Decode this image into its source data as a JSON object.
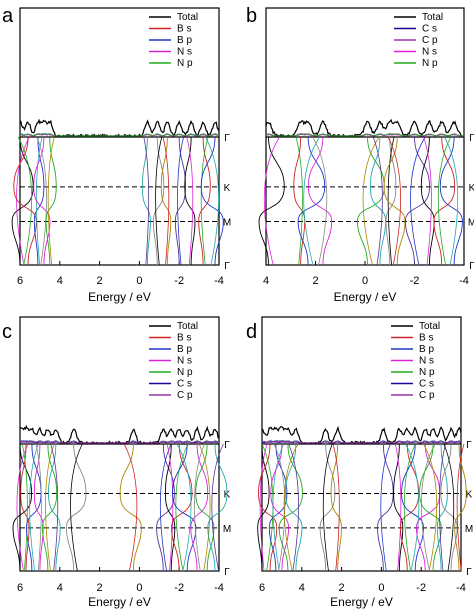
{
  "figure": {
    "colors": {
      "Total": "#000000",
      "B s": "#cc2222",
      "B p": "#2233cc",
      "N s": "#dd22dd",
      "N p": "#22aa22",
      "C s": "#220099",
      "C p": "#9933aa"
    },
    "band_palette": [
      "#000000",
      "#cc2222",
      "#2233cc",
      "#dd22dd",
      "#22aa22",
      "#22aaaa",
      "#888888",
      "#aa8800",
      "#553399"
    ]
  },
  "chart_data": [
    {
      "id": "a",
      "panel_label": "a",
      "type": "line",
      "title": "",
      "xlabel": "Energy / eV",
      "x_ticks": [
        "6",
        "4",
        "2",
        "0",
        "-2",
        "-4"
      ],
      "xlim": [
        6,
        -4
      ],
      "legend": [
        "Total",
        "B s",
        "B p",
        "N s",
        "N p"
      ],
      "kpoints": [
        "Γ",
        "K",
        "M",
        "Γ"
      ],
      "bands_x": [
        6.0,
        5.6,
        5.1,
        4.8,
        4.5,
        -0.4,
        -0.9,
        -1.4,
        -2.0,
        -2.6,
        -3.2,
        -3.8
      ]
    },
    {
      "id": "b",
      "panel_label": "b",
      "type": "line",
      "title": "",
      "xlabel": "Energy / eV",
      "x_ticks": [
        "4",
        "2",
        "0",
        "-2",
        "-4"
      ],
      "xlim": [
        4,
        -4
      ],
      "legend": [
        "Total",
        "C s",
        "C p",
        "N s",
        "N p"
      ],
      "kpoints": [
        "Γ",
        "K",
        "M",
        "Γ"
      ],
      "bands_x": [
        3.9,
        2.6,
        2.3,
        1.7,
        -0.1,
        -0.6,
        -1.0,
        -1.3,
        -2.0,
        -2.6,
        -3.1,
        -3.6
      ]
    },
    {
      "id": "c",
      "panel_label": "c",
      "type": "line",
      "title": "",
      "xlabel": "Energy / eV",
      "x_ticks": [
        "6",
        "4",
        "2",
        "0",
        "-2",
        "-4"
      ],
      "xlim": [
        6,
        -4
      ],
      "legend": [
        "Total",
        "B s",
        "B p",
        "N s",
        "N p",
        "C s",
        "C p"
      ],
      "kpoints": [
        "Γ",
        "K",
        "M",
        "Γ"
      ],
      "bands_x": [
        6.0,
        5.7,
        5.4,
        5.0,
        4.6,
        4.2,
        3.3,
        0.3,
        -1.2,
        -1.6,
        -2.0,
        -2.4,
        -2.9,
        -3.4,
        -3.8
      ]
    },
    {
      "id": "d",
      "panel_label": "d",
      "type": "line",
      "title": "",
      "xlabel": "Energy / eV",
      "x_ticks": [
        "6",
        "4",
        "2",
        "0",
        "-2",
        "-4"
      ],
      "xlim": [
        6,
        -4
      ],
      "legend": [
        "Total",
        "B s",
        "B p",
        "N s",
        "N p",
        "C s",
        "C p"
      ],
      "kpoints": [
        "Γ",
        "K",
        "M",
        "Γ"
      ],
      "bands_x": [
        6.0,
        5.6,
        5.3,
        5.0,
        4.7,
        4.3,
        2.8,
        2.2,
        -0.1,
        -0.9,
        -1.3,
        -1.7,
        -2.2,
        -2.6,
        -3.0,
        -3.5,
        -3.9
      ]
    }
  ]
}
